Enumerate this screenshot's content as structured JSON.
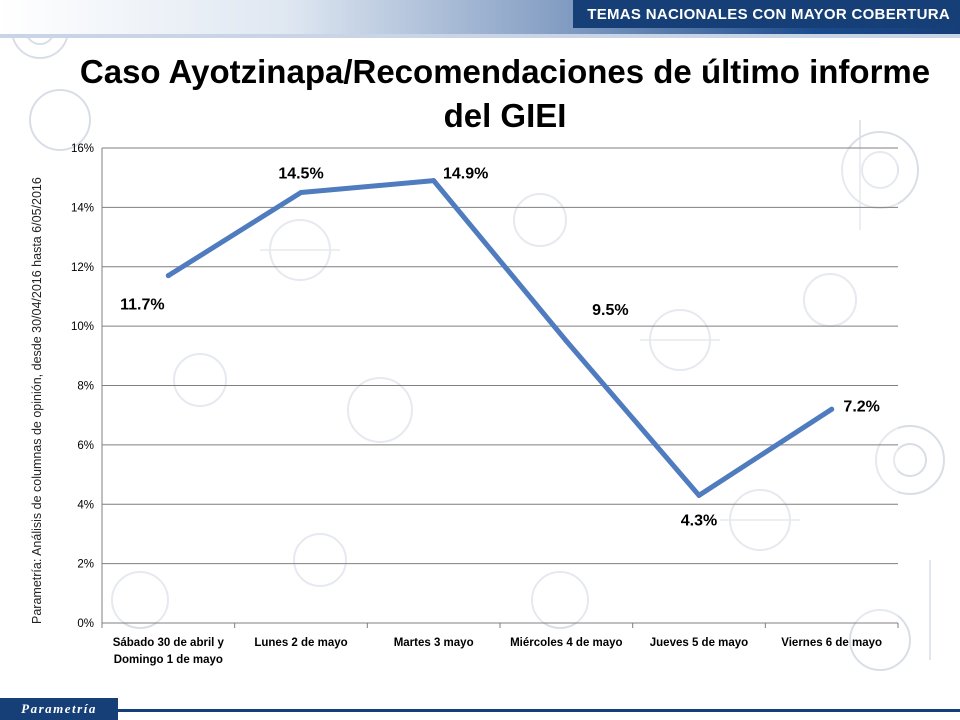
{
  "header": {
    "banner": "TEMAS NACIONALES CON MAYOR COBERTURA"
  },
  "source_note": "Parametría: Análisis de columnas de opinión, desde 30/04/2016 hasta 6/05/2016",
  "footer": {
    "logo": "Parametría"
  },
  "colors": {
    "line": "#4f7bbf",
    "banner": "#163f78",
    "grid": "#7f7f7f"
  },
  "chart_data": {
    "type": "line",
    "title": "Caso Ayotzinapa/Recomendaciones de último informe del GIEI",
    "categories": [
      [
        "Sábado 30 de abril y",
        "Domingo 1 de mayo"
      ],
      [
        "Lunes 2 de mayo"
      ],
      [
        "Martes 3 mayo"
      ],
      [
        "Miércoles 4 de mayo"
      ],
      [
        "Jueves 5 de mayo"
      ],
      [
        "Viernes 6 de mayo"
      ]
    ],
    "values": [
      11.7,
      14.5,
      14.9,
      9.5,
      4.3,
      7.2
    ],
    "data_labels": [
      "11.7%",
      "14.5%",
      "14.9%",
      "9.5%",
      "4.3%",
      "7.2%"
    ],
    "label_positions": [
      "below",
      "above",
      "above",
      "above",
      "below",
      "above"
    ],
    "y_ticks": [
      "0%",
      "2%",
      "4%",
      "6%",
      "8%",
      "10%",
      "12%",
      "14%",
      "16%"
    ],
    "ylim": [
      0,
      16
    ],
    "grid": true,
    "legend": false
  }
}
